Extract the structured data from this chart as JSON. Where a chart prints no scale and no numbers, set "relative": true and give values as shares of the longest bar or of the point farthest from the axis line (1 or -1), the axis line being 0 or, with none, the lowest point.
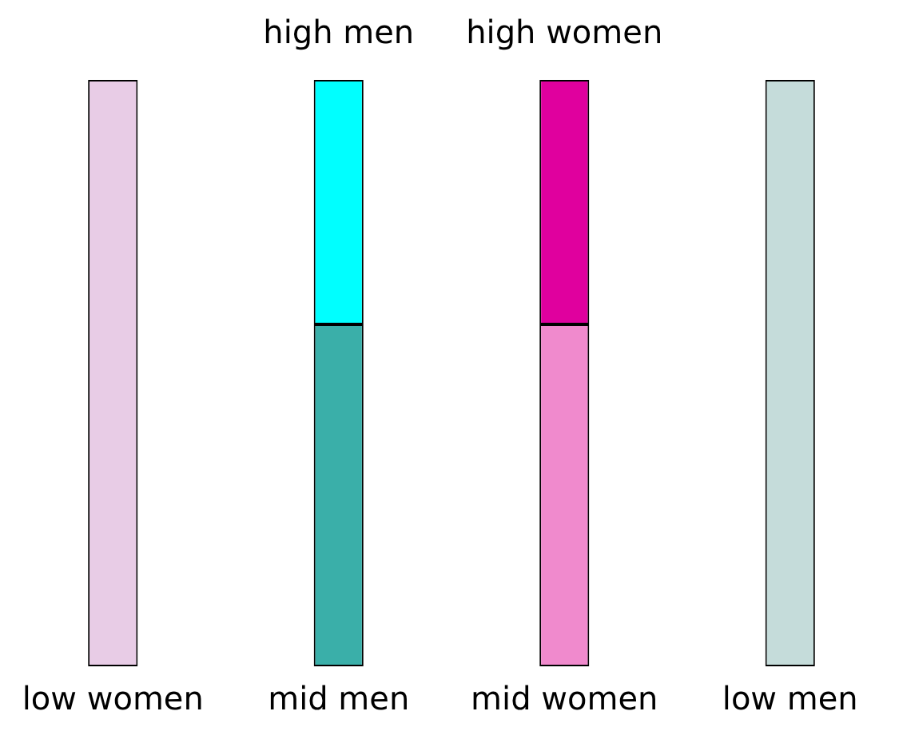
{
  "chart_data": {
    "type": "bar",
    "stacked": true,
    "relative": true,
    "categories": [
      "low women",
      "mid men",
      "mid women",
      "low men"
    ],
    "series": [
      {
        "colors": [
          "#e8cce6",
          "#3aafa9",
          "#f08acd",
          "#c5dcda"
        ],
        "values": [
          1,
          0.583,
          0.583,
          1
        ]
      },
      {
        "colors": [
          "#e8cce6",
          "#00ffff",
          "#e0009e",
          "#c5dcda"
        ],
        "values": [
          null,
          0.417,
          0.417,
          null
        ]
      }
    ],
    "annotations": [
      "high men",
      "high women"
    ],
    "grid": false,
    "legend": false
  }
}
